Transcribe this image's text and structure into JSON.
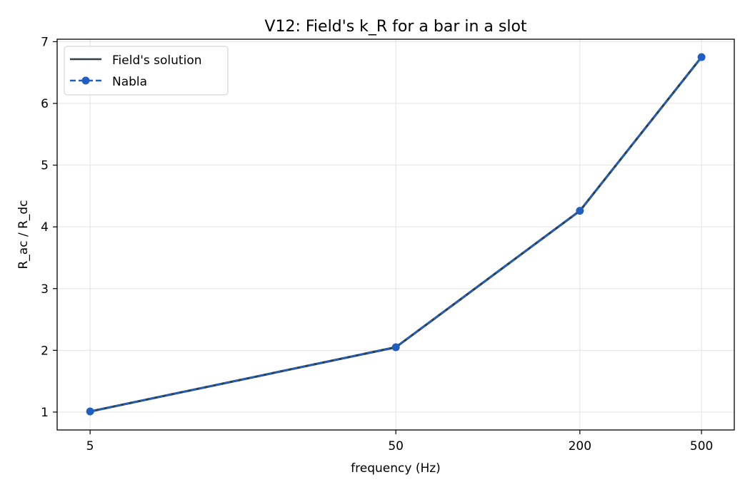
{
  "chart_data": {
    "type": "line",
    "title": "V12: Field's k_R for a bar in a slot",
    "xlabel": "frequency (Hz)",
    "ylabel": "R_ac / R_dc",
    "x_scale": "log",
    "x_ticks": [
      5,
      50,
      200,
      500
    ],
    "x_tick_labels": [
      "5",
      "50",
      "200",
      "500"
    ],
    "y_ticks": [
      1,
      2,
      3,
      4,
      5,
      6,
      7
    ],
    "y_tick_labels": [
      "1",
      "2",
      "3",
      "4",
      "5",
      "6",
      "7"
    ],
    "xlim": [
      3.9,
      640
    ],
    "ylim": [
      0.71,
      7.04
    ],
    "grid": true,
    "legend_position": "top-left",
    "x": [
      5,
      50,
      200,
      500
    ],
    "series": [
      {
        "name": "Field's solution",
        "values": [
          1.01,
          2.05,
          4.26,
          6.75
        ],
        "color": "#2f3f4a",
        "line_style": "solid",
        "marker": "none"
      },
      {
        "name": "Nabla",
        "values": [
          1.01,
          2.05,
          4.26,
          6.75
        ],
        "color": "#1f5fbf",
        "line_style": "dashed",
        "marker": "circle"
      }
    ]
  }
}
